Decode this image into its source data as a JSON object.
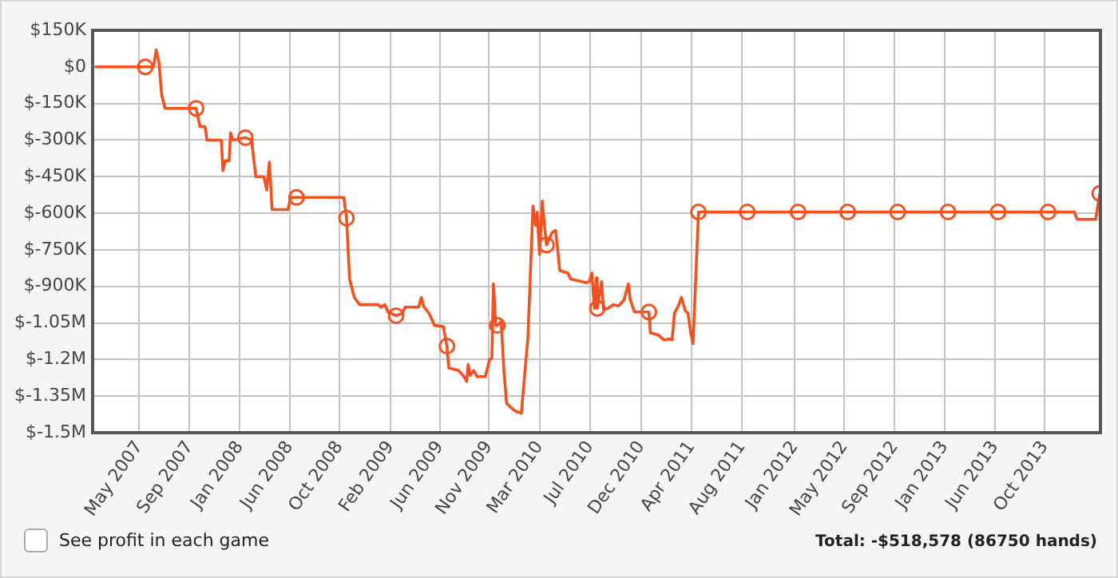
{
  "chart_data": {
    "type": "line",
    "xlim": [
      "2007-01-16",
      "2014-02-28"
    ],
    "xticks": [
      {
        "value": "2007-05-16",
        "label": "May 2007"
      },
      {
        "value": "2007-09-23",
        "label": "Sep 2007"
      },
      {
        "value": "2008-01-31",
        "label": "Jan 2008"
      },
      {
        "value": "2008-06-07",
        "label": "Jun 2008"
      },
      {
        "value": "2008-10-14",
        "label": "Oct 2008"
      },
      {
        "value": "2009-02-22",
        "label": "Feb 2009"
      },
      {
        "value": "2009-06-30",
        "label": "Jun 2009"
      },
      {
        "value": "2009-11-03",
        "label": "Nov 2009"
      },
      {
        "value": "2010-03-14",
        "label": "Mar 2010"
      },
      {
        "value": "2010-07-22",
        "label": "Jul 2010"
      },
      {
        "value": "2010-12-01",
        "label": "Dec 2010"
      },
      {
        "value": "2011-04-10",
        "label": "Apr 2011"
      },
      {
        "value": "2011-08-18",
        "label": "Aug 2011"
      },
      {
        "value": "2012-01-01",
        "label": "Jan 2012"
      },
      {
        "value": "2012-05-08",
        "label": "May 2012"
      },
      {
        "value": "2012-09-15",
        "label": "Sep 2012"
      },
      {
        "value": "2013-01-22",
        "label": "Jan 2013"
      },
      {
        "value": "2013-06-01",
        "label": "Jun 2013"
      },
      {
        "value": "2013-10-07",
        "label": "Oct 2013"
      }
    ],
    "ylim": [
      -1500000,
      150000
    ],
    "yticks": [
      {
        "value": 150000,
        "label": "$150K"
      },
      {
        "value": 0,
        "label": "$0"
      },
      {
        "value": -150000,
        "label": "$-150K"
      },
      {
        "value": -300000,
        "label": "$-300K"
      },
      {
        "value": -450000,
        "label": "$-450K"
      },
      {
        "value": -600000,
        "label": "$-600K"
      },
      {
        "value": -750000,
        "label": "$-750K"
      },
      {
        "value": -900000,
        "label": "$-900K"
      },
      {
        "value": -1050000,
        "label": "$-1.05M"
      },
      {
        "value": -1200000,
        "label": "$-1.2M"
      },
      {
        "value": -1350000,
        "label": "$-1.35M"
      },
      {
        "value": -1500000,
        "label": "$-1.5M"
      }
    ],
    "grid": true,
    "legend": false,
    "annotations": [
      "See profit in each game",
      "Total: -$518,578 (86750 hands)"
    ],
    "series": [
      {
        "type": "line",
        "marker": "none",
        "color": "#f4511e",
        "x": [
          "2007-01-22",
          "2007-06-01",
          "2007-06-22",
          "2007-06-29",
          "2007-07-06",
          "2007-07-13",
          "2007-07-22",
          "2007-10-10",
          "2007-10-20",
          "2007-11-02",
          "2007-11-07",
          "2007-12-14",
          "2007-12-18",
          "2007-12-24",
          "2008-01-03",
          "2008-01-07",
          "2008-01-13",
          "2008-02-14",
          "2008-03-01",
          "2008-03-12",
          "2008-04-02",
          "2008-04-09",
          "2008-04-16",
          "2008-04-23",
          "2008-06-03",
          "2008-06-10",
          "2008-06-25",
          "2008-10-25",
          "2008-11-01",
          "2008-11-09",
          "2008-11-21",
          "2008-12-05",
          "2009-01-22",
          "2009-01-29",
          "2009-02-08",
          "2009-02-16",
          "2009-03-09",
          "2009-03-25",
          "2009-04-01",
          "2009-05-06",
          "2009-05-13",
          "2009-05-20",
          "2009-06-02",
          "2009-06-16",
          "2009-07-09",
          "2009-07-18",
          "2009-07-23",
          "2009-08-17",
          "2009-08-31",
          "2009-09-07",
          "2009-09-11",
          "2009-09-16",
          "2009-09-25",
          "2009-10-04",
          "2009-10-25",
          "2009-11-05",
          "2009-11-11",
          "2009-11-15",
          "2009-11-21",
          "2009-11-25",
          "2009-12-05",
          "2009-12-12",
          "2009-12-19",
          "2010-01-09",
          "2010-01-26",
          "2010-02-05",
          "2010-02-12",
          "2010-02-25",
          "2010-03-04",
          "2010-03-08",
          "2010-03-14",
          "2010-03-21",
          "2010-03-28",
          "2010-04-01",
          "2010-04-15",
          "2010-04-24",
          "2010-04-29",
          "2010-05-05",
          "2010-05-26",
          "2010-06-02",
          "2010-06-29",
          "2010-07-13",
          "2010-07-20",
          "2010-07-27",
          "2010-07-31",
          "2010-08-03",
          "2010-08-07",
          "2010-08-10",
          "2010-08-21",
          "2010-08-26",
          "2010-09-06",
          "2010-09-20",
          "2010-10-04",
          "2010-10-18",
          "2010-10-29",
          "2010-11-03",
          "2010-11-14",
          "2010-12-21",
          "2010-12-25",
          "2011-01-15",
          "2011-01-29",
          "2011-02-12",
          "2011-02-19",
          "2011-02-25",
          "2011-03-07",
          "2011-03-15",
          "2011-03-25",
          "2011-04-01",
          "2011-04-08",
          "2011-04-14",
          "2011-04-28",
          "2011-09-01",
          "2012-01-10",
          "2012-05-17",
          "2012-09-23",
          "2013-01-31",
          "2013-06-09",
          "2013-10-16",
          "2013-12-23",
          "2013-12-30",
          "2014-02-16",
          "2014-02-26"
        ],
        "values": [
          0,
          0,
          0,
          70000,
          20000,
          -115000,
          -170000,
          -170000,
          -245000,
          -245000,
          -300000,
          -300000,
          -425000,
          -385000,
          -385000,
          -270000,
          -300000,
          -290000,
          -300000,
          -450000,
          -450000,
          -505000,
          -390000,
          -585000,
          -585000,
          -535000,
          -535000,
          -535000,
          -620000,
          -870000,
          -945000,
          -975000,
          -975000,
          -985000,
          -975000,
          -1005000,
          -1020000,
          -1010000,
          -985000,
          -985000,
          -945000,
          -985000,
          -1010000,
          -1060000,
          -1065000,
          -1145000,
          -1235000,
          -1245000,
          -1270000,
          -1290000,
          -1220000,
          -1265000,
          -1245000,
          -1270000,
          -1270000,
          -1200000,
          -1195000,
          -890000,
          -1060000,
          -1060000,
          -1045000,
          -1245000,
          -1380000,
          -1410000,
          -1420000,
          -1235000,
          -1110000,
          -570000,
          -650000,
          -595000,
          -770000,
          -550000,
          -670000,
          -730000,
          -680000,
          -670000,
          -735000,
          -835000,
          -845000,
          -870000,
          -880000,
          -885000,
          -880000,
          -845000,
          -935000,
          -990000,
          -865000,
          -990000,
          -880000,
          -995000,
          -990000,
          -975000,
          -980000,
          -955000,
          -890000,
          -955000,
          -1005000,
          -1005000,
          -1090000,
          -1100000,
          -1120000,
          -1115000,
          -1120000,
          -1010000,
          -980000,
          -945000,
          -1000000,
          -1010000,
          -1090000,
          -1135000,
          -595000,
          -595000,
          -595000,
          -595000,
          -595000,
          -595000,
          -595000,
          -595000,
          -595000,
          -625000,
          -625000,
          -519000
        ]
      },
      {
        "type": "scatter",
        "marker": "circle",
        "color": "#f4511e",
        "x": [
          "2007-06-01",
          "2007-10-10",
          "2008-02-14",
          "2008-06-25",
          "2008-11-01",
          "2009-03-09",
          "2009-07-18",
          "2009-11-25",
          "2010-04-01",
          "2010-08-10",
          "2010-12-21",
          "2011-04-28",
          "2011-09-01",
          "2012-01-10",
          "2012-05-17",
          "2012-09-23",
          "2013-01-31",
          "2013-06-09",
          "2013-10-16",
          "2014-02-26"
        ],
        "values": [
          0,
          -170000,
          -290000,
          -535000,
          -620000,
          -1020000,
          -1145000,
          -1060000,
          -730000,
          -990000,
          -1005000,
          -595000,
          -595000,
          -595000,
          -595000,
          -595000,
          -595000,
          -595000,
          -595000,
          -519000
        ]
      }
    ]
  }
}
